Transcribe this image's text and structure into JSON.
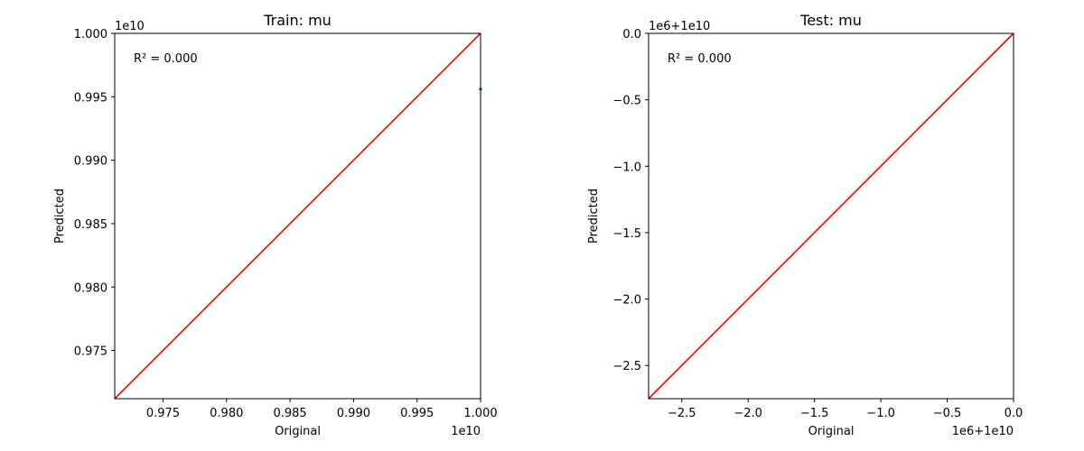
{
  "chart_data": [
    {
      "type": "scatter",
      "title": "Train: mu",
      "xlabel": "Original",
      "ylabel": "Predicted",
      "x_offset_label": "1e10",
      "y_offset_label": "1e10",
      "x_tick_labels": [
        "0.975",
        "0.980",
        "0.985",
        "0.990",
        "0.995",
        "1.000"
      ],
      "y_tick_labels": [
        "0.975",
        "0.980",
        "0.985",
        "0.990",
        "0.995",
        "1.000"
      ],
      "xlim": [
        9712000000,
        10000000000
      ],
      "ylim": [
        9712000000,
        10000000000
      ],
      "annotation": "R² = 0.000",
      "grid": false,
      "series": [
        {
          "kind": "points",
          "color": "#1f77b4",
          "x": [
            10000000000
          ],
          "y": [
            9956000000
          ]
        },
        {
          "kind": "identity-line",
          "color": "#ff0000",
          "x": [
            9712000000,
            10000000000
          ],
          "y": [
            9712000000,
            10000000000
          ]
        }
      ]
    },
    {
      "type": "scatter",
      "title": "Test: mu",
      "xlabel": "Original",
      "ylabel": "Predicted",
      "x_offset_label": "1e6+1e10",
      "y_offset_label": "1e6+1e10",
      "x_tick_labels": [
        "−2.5",
        "−2.0",
        "−1.5",
        "−1.0",
        "−0.5",
        "0.0"
      ],
      "y_tick_labels": [
        "−2.5",
        "−2.0",
        "−1.5",
        "−1.0",
        "−0.5",
        "0.0"
      ],
      "xlim": [
        -2.75,
        0
      ],
      "ylim": [
        -2.75,
        0
      ],
      "annotation": "R² = 0.000",
      "grid": false,
      "series": [
        {
          "kind": "identity-line",
          "color": "#ff0000",
          "x": [
            -2.75,
            0
          ],
          "y": [
            -2.75,
            0
          ]
        }
      ]
    }
  ]
}
